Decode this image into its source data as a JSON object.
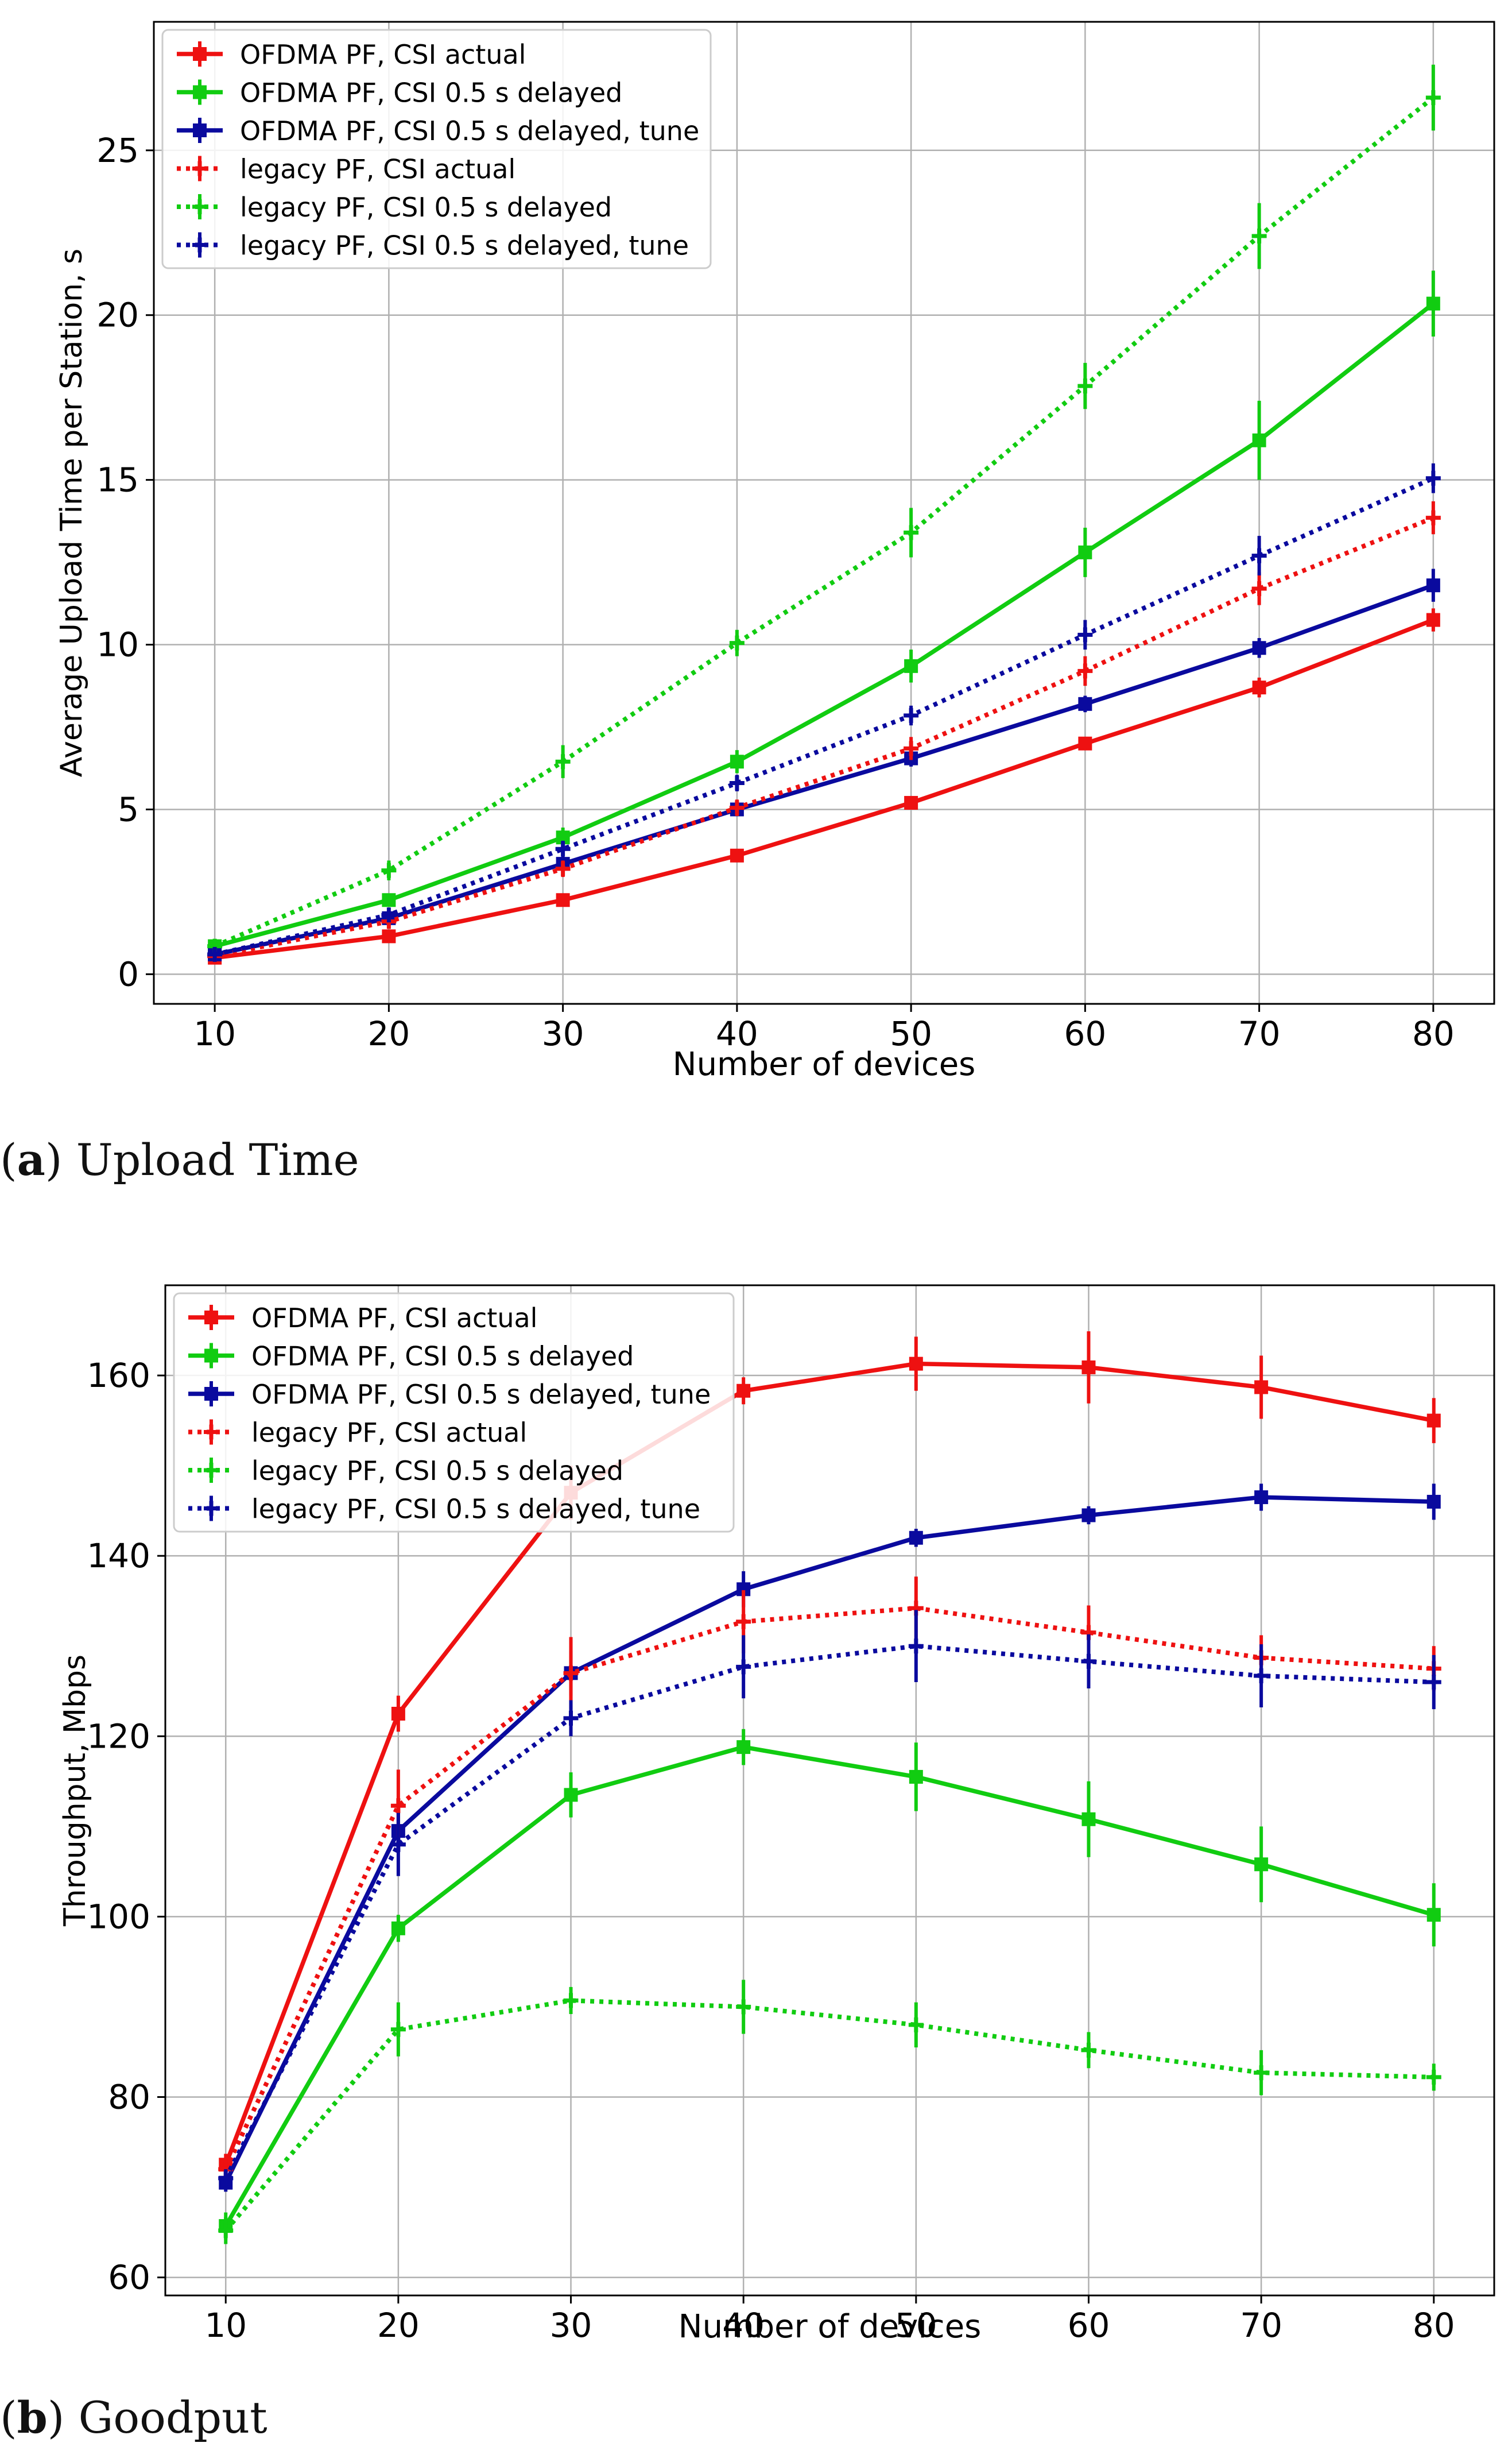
{
  "figure": {
    "captions": [
      {
        "letter": "a",
        "text": "Upload Time"
      },
      {
        "letter": "b",
        "text": "Goodput"
      }
    ]
  },
  "colors": {
    "red": "#ee1111",
    "green": "#11cc11",
    "blue": "#0a0a9e",
    "grid": "#b0b0b0",
    "axis": "#000000"
  },
  "chart_data": [
    {
      "type": "line",
      "title": "",
      "xlabel": "Number of devices",
      "ylabel": "Average Upload Time per Station, s",
      "x": [
        10,
        20,
        30,
        40,
        50,
        60,
        70,
        80
      ],
      "xlim": [
        6.5,
        83.5
      ],
      "ylim": [
        -0.9,
        28.9
      ],
      "xticks": [
        10,
        20,
        30,
        40,
        50,
        60,
        70,
        80
      ],
      "yticks": [
        0,
        5,
        10,
        15,
        20,
        25
      ],
      "grid": true,
      "legend_position": "top-left",
      "series": [
        {
          "name": "OFDMA PF, CSI actual",
          "color": "red",
          "style": "solid",
          "marker": "square",
          "values": [
            0.5,
            1.15,
            2.25,
            3.6,
            5.2,
            7.0,
            8.7,
            10.75
          ],
          "errors": [
            0.1,
            0.15,
            0.15,
            0.15,
            0.2,
            0.2,
            0.3,
            0.35
          ]
        },
        {
          "name": "OFDMA PF, CSI 0.5 s delayed",
          "color": "green",
          "style": "solid",
          "marker": "square",
          "values": [
            0.85,
            2.25,
            4.15,
            6.45,
            9.35,
            12.8,
            16.2,
            20.35
          ],
          "errors": [
            0.15,
            0.2,
            0.3,
            0.35,
            0.5,
            0.75,
            1.2,
            1.0
          ]
        },
        {
          "name": "OFDMA PF, CSI 0.5 s delayed, tune",
          "color": "blue",
          "style": "solid",
          "marker": "square",
          "values": [
            0.6,
            1.7,
            3.35,
            5.0,
            6.55,
            8.2,
            9.9,
            11.8
          ],
          "errors": [
            0.15,
            0.2,
            0.2,
            0.2,
            0.25,
            0.25,
            0.3,
            0.5
          ]
        },
        {
          "name": "legacy PF, CSI actual",
          "color": "red",
          "style": "dotted",
          "marker": "plus",
          "values": [
            0.55,
            1.6,
            3.2,
            5.05,
            6.85,
            9.2,
            11.7,
            13.85
          ],
          "errors": [
            0.1,
            0.15,
            0.25,
            0.25,
            0.35,
            0.45,
            0.5,
            0.5
          ]
        },
        {
          "name": "legacy PF, CSI 0.5 s delayed",
          "color": "green",
          "style": "dotted",
          "marker": "plus",
          "values": [
            0.85,
            3.15,
            6.45,
            10.05,
            13.4,
            17.85,
            22.4,
            26.6
          ],
          "errors": [
            0.15,
            0.3,
            0.5,
            0.4,
            0.75,
            0.7,
            1.0,
            1.0
          ]
        },
        {
          "name": "legacy PF, CSI 0.5 s delayed, tune",
          "color": "blue",
          "style": "dotted",
          "marker": "plus",
          "values": [
            0.6,
            1.8,
            3.8,
            5.8,
            7.85,
            10.3,
            12.7,
            15.05
          ],
          "errors": [
            0.1,
            0.15,
            0.25,
            0.25,
            0.3,
            0.45,
            0.6,
            0.45
          ]
        }
      ]
    },
    {
      "type": "line",
      "title": "",
      "xlabel": "Number of devices",
      "ylabel": "Throughput, Mbps",
      "x": [
        10,
        20,
        30,
        40,
        50,
        60,
        70,
        80
      ],
      "xlim": [
        6.5,
        83.5
      ],
      "ylim": [
        58,
        170
      ],
      "xticks": [
        10,
        20,
        30,
        40,
        50,
        60,
        70,
        80
      ],
      "yticks": [
        60,
        80,
        100,
        120,
        140,
        160
      ],
      "grid": true,
      "legend_position": "top-left",
      "series": [
        {
          "name": "OFDMA PF, CSI actual",
          "color": "red",
          "style": "solid",
          "marker": "square",
          "values": [
            72.5,
            122.5,
            147,
            158.3,
            161.3,
            160.9,
            158.7,
            155
          ],
          "errors": [
            1.2,
            2.0,
            3.0,
            1.5,
            3.0,
            4.0,
            3.5,
            2.5
          ]
        },
        {
          "name": "OFDMA PF, CSI 0.5 s delayed",
          "color": "green",
          "style": "solid",
          "marker": "square",
          "values": [
            65.7,
            98.7,
            113.5,
            118.8,
            115.5,
            110.8,
            105.8,
            100.2
          ],
          "errors": [
            1.5,
            1.5,
            2.5,
            2.0,
            3.8,
            4.2,
            4.2,
            3.5
          ]
        },
        {
          "name": "OFDMA PF, CSI 0.5 s delayed, tune",
          "color": "blue",
          "style": "solid",
          "marker": "square",
          "values": [
            70.5,
            109.5,
            127,
            136.3,
            142,
            144.5,
            146.5,
            146
          ],
          "errors": [
            1.0,
            2.0,
            2.5,
            2.0,
            1.0,
            1.0,
            1.5,
            2.0
          ]
        },
        {
          "name": "legacy PF, CSI actual",
          "color": "red",
          "style": "dotted",
          "marker": "plus",
          "values": [
            72,
            112.3,
            127,
            132.7,
            134.2,
            131.5,
            128.7,
            127.5
          ],
          "errors": [
            1.0,
            4.0,
            4.0,
            3.5,
            3.5,
            3.0,
            2.5,
            2.5
          ]
        },
        {
          "name": "legacy PF, CSI 0.5 s delayed",
          "color": "green",
          "style": "dotted",
          "marker": "plus",
          "values": [
            65.2,
            87.5,
            90.7,
            90,
            88,
            85.2,
            82.7,
            82.2
          ],
          "errors": [
            1.5,
            3.0,
            1.5,
            3.0,
            2.5,
            2.0,
            2.5,
            1.5
          ]
        },
        {
          "name": "legacy PF, CSI 0.5 s delayed, tune",
          "color": "blue",
          "style": "dotted",
          "marker": "plus",
          "values": [
            71,
            108,
            122,
            127.7,
            130,
            128.3,
            126.7,
            126
          ],
          "errors": [
            1.0,
            3.5,
            2.0,
            3.5,
            4.0,
            3.0,
            3.5,
            3.0
          ]
        }
      ]
    }
  ]
}
